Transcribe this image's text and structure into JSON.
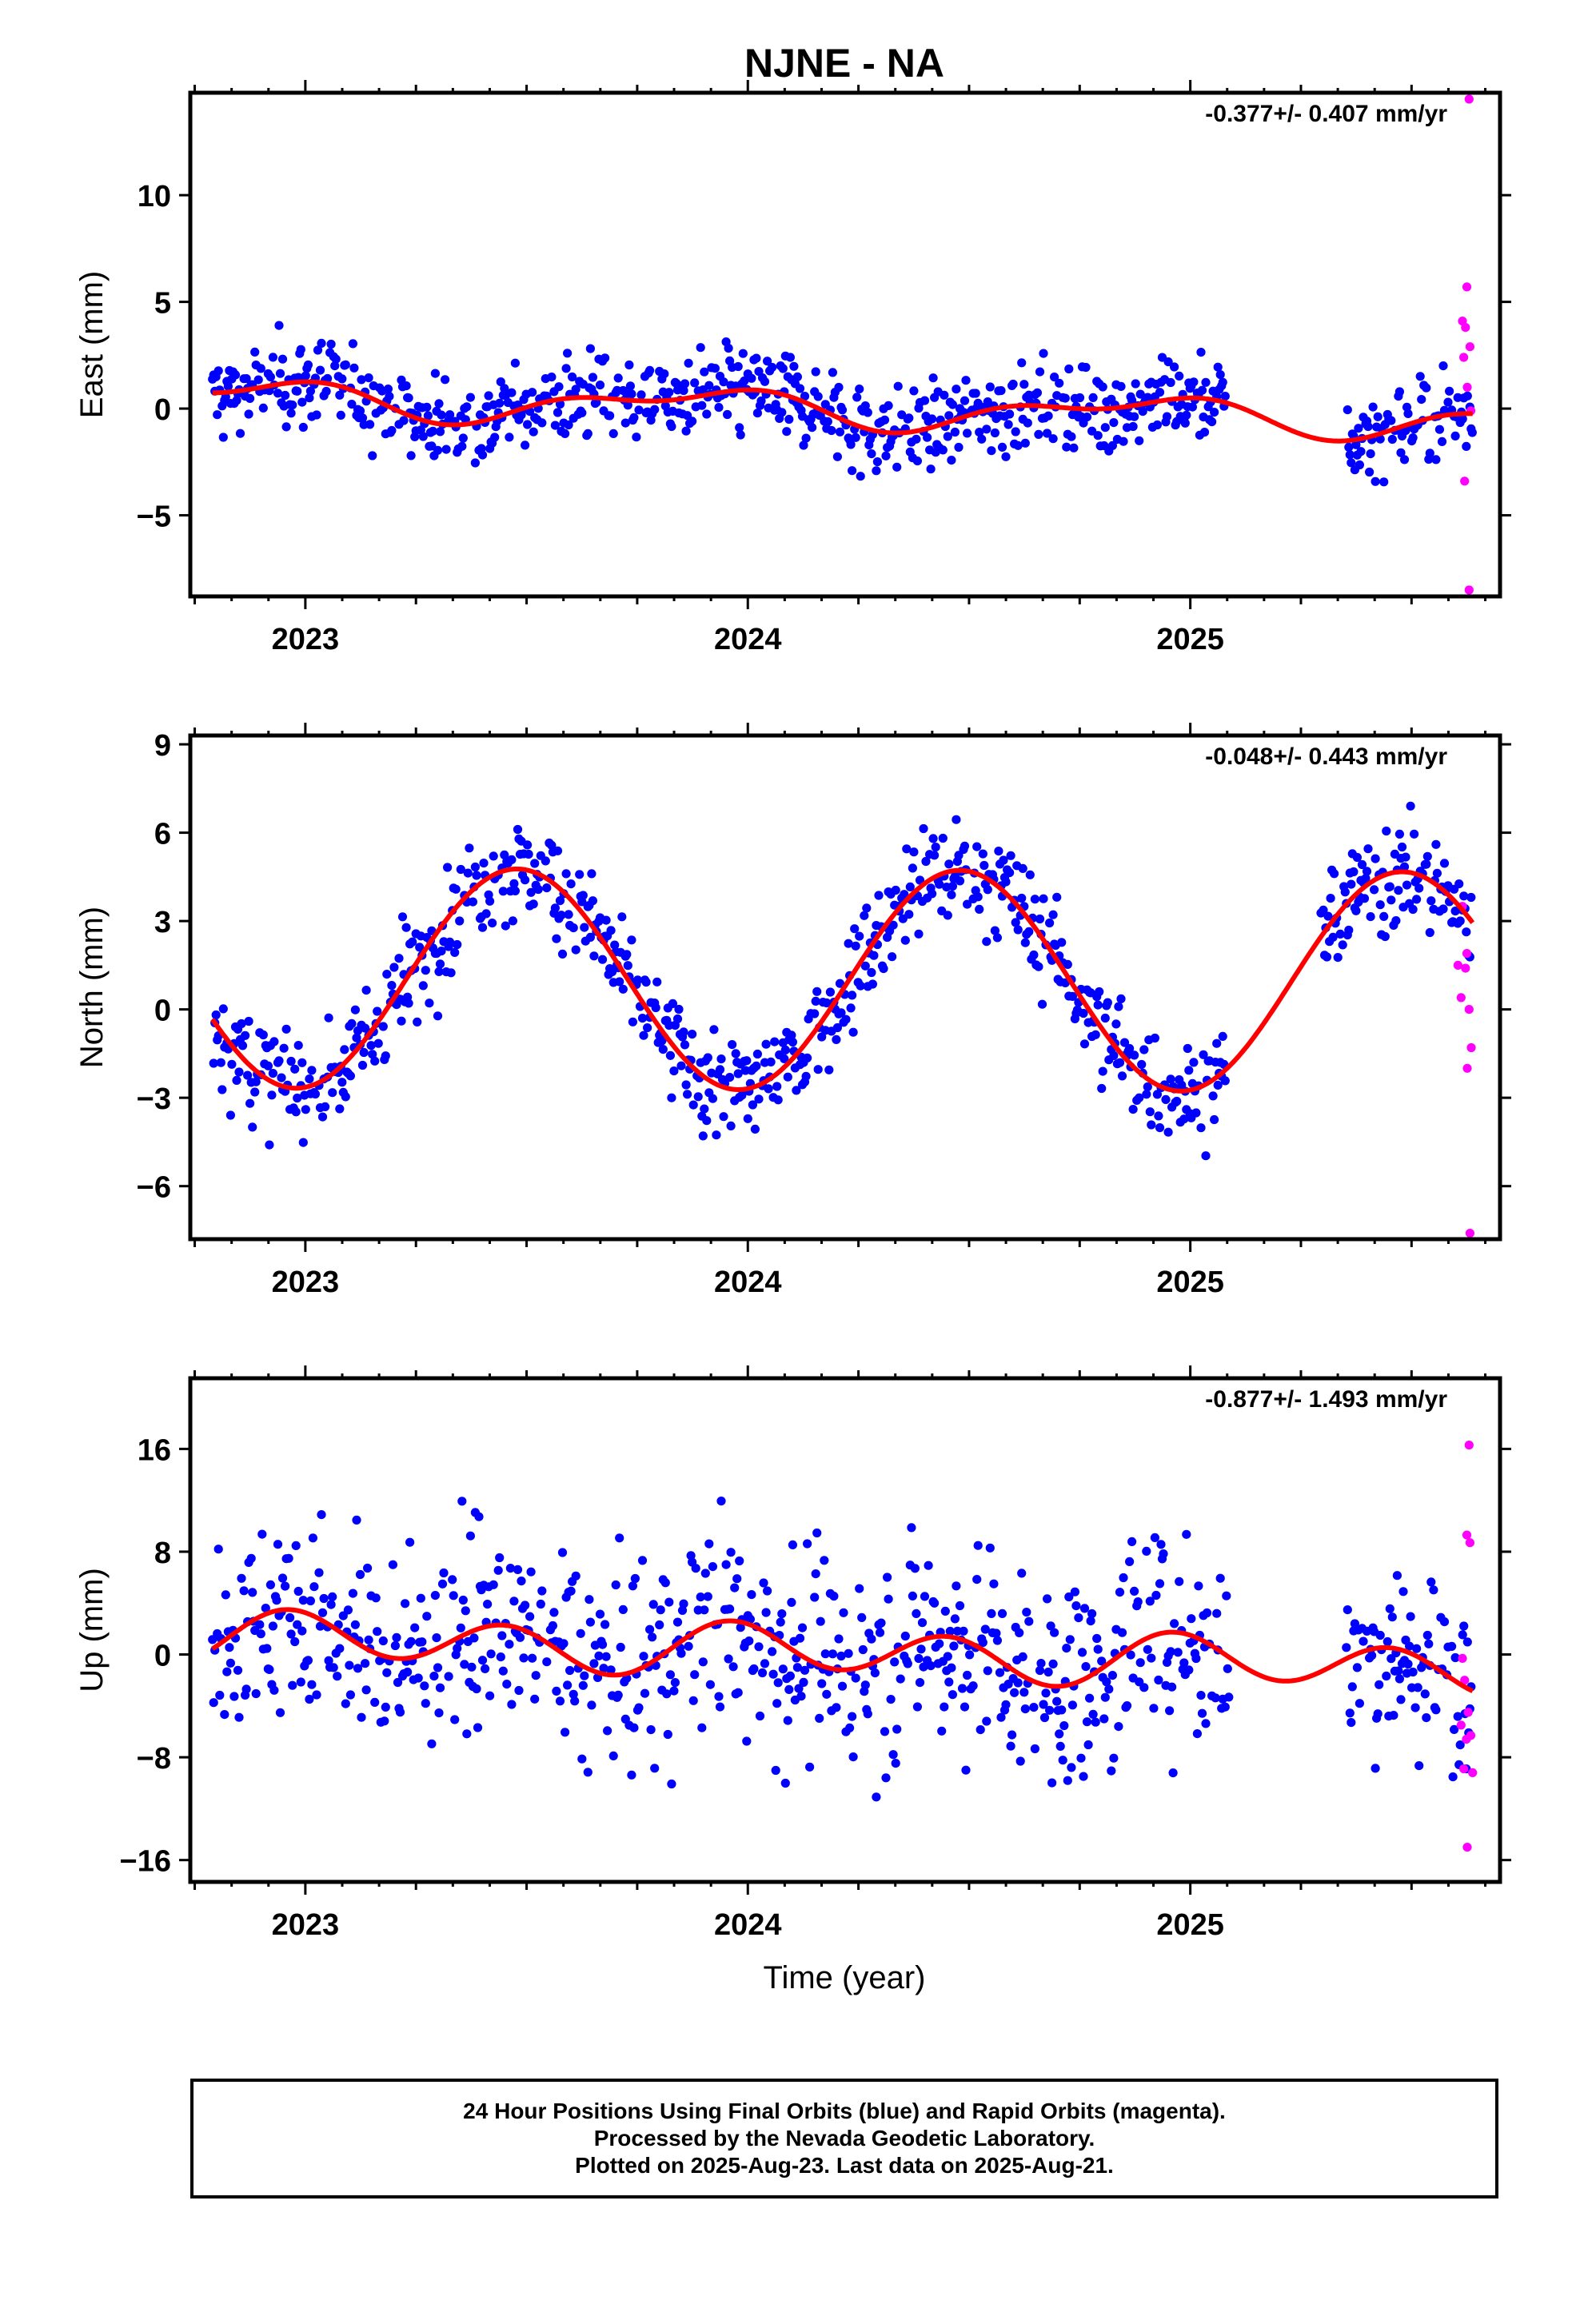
{
  "title": "NJNE - NA",
  "x_axis_label": "Time (year)",
  "footer": {
    "line1": "24 Hour Positions Using Final Orbits (blue) and Rapid Orbits (magenta).",
    "line2": "Processed by the Nevada Geodetic Laboratory.",
    "line3": "Plotted on 2025-Aug-23. Last data on 2025-Aug-21."
  },
  "colors": {
    "final_orbits": "#0000ff",
    "rapid_orbits": "#ff00ff",
    "model_fit": "#ff0000",
    "axes": "#000000"
  },
  "chart_data": [
    {
      "type": "scatter",
      "ylabel": "East (mm)",
      "annotation": "-0.377+/- 0.407 mm/yr",
      "xlim": [
        2022.74,
        2025.7
      ],
      "ylim": [
        -8.8,
        14.8
      ],
      "xticks": [
        2023,
        2024,
        2025
      ],
      "xtick_labels": [
        "2023",
        "2024",
        "2025"
      ],
      "yticks": [
        10,
        5,
        0,
        -5
      ],
      "ytick_labels": [
        "10",
        "5",
        "0",
        "−5"
      ],
      "grid": false,
      "fit": {
        "mean": 0.0,
        "trend": -0.377,
        "ann_cos": 0.5,
        "ann_sin": -0.5,
        "semi_cos": 0.3,
        "semi_sin": 0.3
      },
      "final_orbits": {
        "x_range": [
          2022.79,
          2025.64
        ],
        "gaps": [
          [
            2025.08,
            2025.35
          ]
        ],
        "scatter_sd": 1.0
      },
      "rapid_orbits": [
        {
          "x": 2025.63,
          "y": 14.5
        },
        {
          "x": 2025.625,
          "y": 5.7
        },
        {
          "x": 2025.615,
          "y": 4.1
        },
        {
          "x": 2025.622,
          "y": 3.8
        },
        {
          "x": 2025.632,
          "y": 2.9
        },
        {
          "x": 2025.618,
          "y": 2.4
        },
        {
          "x": 2025.626,
          "y": 1.0
        },
        {
          "x": 2025.634,
          "y": -0.1
        },
        {
          "x": 2025.62,
          "y": -3.4
        },
        {
          "x": 2025.63,
          "y": -8.5
        }
      ]
    },
    {
      "type": "scatter",
      "ylabel": "North (mm)",
      "annotation": "-0.048+/- 0.443 mm/yr",
      "xlim": [
        2022.74,
        2025.7
      ],
      "ylim": [
        -7.8,
        9.3
      ],
      "xticks": [
        2023,
        2024,
        2025
      ],
      "xtick_labels": [
        "2023",
        "2024",
        "2025"
      ],
      "yticks": [
        9,
        6,
        3,
        0,
        -3,
        -6
      ],
      "ytick_labels": [
        "9",
        "6",
        "3",
        "0",
        "−3",
        "−6"
      ],
      "grid": false,
      "fit": {
        "mean": 1.0,
        "trend": -0.048,
        "ann_cos": -3.7,
        "ann_sin": 0.5,
        "semi_cos": 0.0,
        "semi_sin": 0.0
      },
      "final_orbits": {
        "x_range": [
          2022.79,
          2025.64
        ],
        "gaps": [
          [
            2025.08,
            2025.29
          ]
        ],
        "scatter_sd": 0.9
      },
      "rapid_orbits": [
        {
          "x": 2025.615,
          "y": 3.5
        },
        {
          "x": 2025.625,
          "y": 1.9
        },
        {
          "x": 2025.605,
          "y": 1.5
        },
        {
          "x": 2025.622,
          "y": 1.4
        },
        {
          "x": 2025.612,
          "y": 0.4
        },
        {
          "x": 2025.63,
          "y": 0.0
        },
        {
          "x": 2025.635,
          "y": -1.3
        },
        {
          "x": 2025.626,
          "y": -2.0
        },
        {
          "x": 2025.632,
          "y": -7.6
        }
      ]
    },
    {
      "type": "scatter",
      "ylabel": "Up (mm)",
      "annotation": "-0.877+/- 1.493 mm/yr",
      "xlim": [
        2022.74,
        2025.7
      ],
      "ylim": [
        -17.7,
        21.5
      ],
      "xticks": [
        2023,
        2024,
        2025
      ],
      "xtick_labels": [
        "2023",
        "2024",
        "2025"
      ],
      "yticks": [
        16,
        8,
        0,
        -8,
        -16
      ],
      "ytick_labels": [
        "16",
        "8",
        "0",
        "−8",
        "−16"
      ],
      "grid": false,
      "fit": {
        "mean": 0.2,
        "trend": -0.877,
        "ann_cos": 0.5,
        "ann_sin": 0.3,
        "semi_cos": 1.5,
        "semi_sin": -1.0
      },
      "final_orbits": {
        "x_range": [
          2022.79,
          2025.64
        ],
        "gaps": [
          [
            2025.09,
            2025.35
          ]
        ],
        "scatter_sd": 4.0
      },
      "rapid_orbits": [
        {
          "x": 2025.63,
          "y": 16.3
        },
        {
          "x": 2025.625,
          "y": 9.3
        },
        {
          "x": 2025.632,
          "y": 8.7
        },
        {
          "x": 2025.615,
          "y": -0.3
        },
        {
          "x": 2025.62,
          "y": -2.0
        },
        {
          "x": 2025.628,
          "y": -4.5
        },
        {
          "x": 2025.612,
          "y": -5.5
        },
        {
          "x": 2025.634,
          "y": -6.3
        },
        {
          "x": 2025.624,
          "y": -6.6
        },
        {
          "x": 2025.618,
          "y": -8.9
        },
        {
          "x": 2025.638,
          "y": -9.2
        },
        {
          "x": 2025.626,
          "y": -15.0
        }
      ]
    }
  ]
}
